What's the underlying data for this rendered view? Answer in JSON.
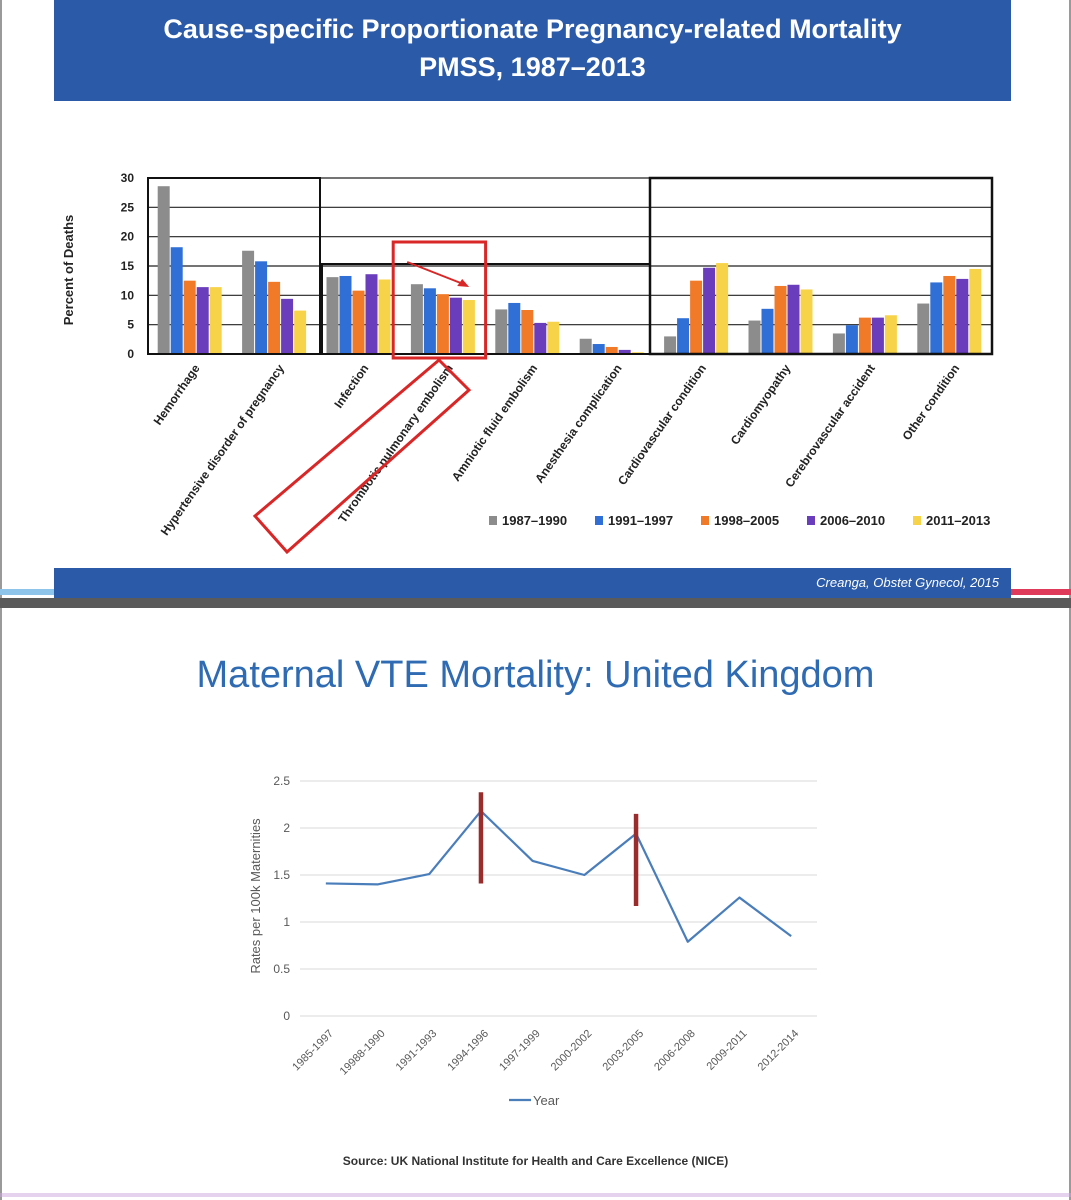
{
  "slide1": {
    "title_line1": "Cause-specific Proportionate Pregnancy-related Mortality",
    "title_line2": "PMSS, 1987–2013",
    "citation": "Creanga, Obstet Gynecol, 2015"
  },
  "slide2": {
    "title": "Maternal VTE Mortality: United Kingdom",
    "source": "Source: UK National Institute for Health and Care Excellence (NICE)"
  },
  "chart_data": [
    {
      "type": "bar",
      "title": "Cause-specific Proportionate Pregnancy-related Mortality PMSS, 1987–2013",
      "ylabel": "Percent of Deaths",
      "xlabel": "",
      "ylim": [
        0,
        30
      ],
      "yticks": [
        "0",
        "5",
        "10",
        "15",
        "20",
        "25",
        "30"
      ],
      "legend_position": "bottom-right",
      "categories": [
        "Hemorrhage",
        "Hypertensive disorder of pregnancy",
        "Infection",
        "Thrombotic pulmonary embolism",
        "Amniotic fluid embolism",
        "Anesthesia complication",
        "Cardiovascular condition",
        "Cardiomyopathy",
        "Cerebrovascular accident",
        "Other condition"
      ],
      "highlight_category": "Thrombotic pulmonary embolism",
      "series": [
        {
          "name": "1987–1990",
          "color": "#8c8c8c",
          "values": [
            28.6,
            17.6,
            13.1,
            11.9,
            7.6,
            2.6,
            3.0,
            5.7,
            3.5,
            8.6
          ]
        },
        {
          "name": "1991–1997",
          "color": "#2f6fd6",
          "values": [
            18.2,
            15.8,
            13.3,
            11.2,
            8.7,
            1.7,
            6.1,
            7.7,
            4.9,
            12.2
          ]
        },
        {
          "name": "1998–2005",
          "color": "#f07a28",
          "values": [
            12.5,
            12.3,
            10.8,
            10.2,
            7.5,
            1.2,
            12.5,
            11.6,
            6.2,
            13.3
          ]
        },
        {
          "name": "2006–2010",
          "color": "#6a3dbc",
          "values": [
            11.4,
            9.4,
            13.6,
            9.6,
            5.3,
            0.7,
            14.7,
            11.8,
            6.2,
            12.8
          ]
        },
        {
          "name": "2011–2013",
          "color": "#f7d34a",
          "values": [
            11.4,
            7.4,
            12.7,
            9.2,
            5.5,
            0.3,
            15.5,
            11.0,
            6.6,
            14.5
          ]
        }
      ]
    },
    {
      "type": "line",
      "title": "Maternal VTE Mortality: United Kingdom",
      "ylabel": "Rates per 100k Maternities",
      "xlabel": "",
      "ylim": [
        0,
        2.5
      ],
      "yticks": [
        "0",
        "0.5",
        "1",
        "1.5",
        "2",
        "2.5"
      ],
      "grid": true,
      "legend_position": "bottom",
      "categories": [
        "1985-1997",
        "19988-1990",
        "1991-1993",
        "1994-1996",
        "1997-1999",
        "2000-2002",
        "2003-2005",
        "2006-2008",
        "2009-2011",
        "2012-2014"
      ],
      "series": [
        {
          "name": "Year",
          "color": "#4a7ebb",
          "values": [
            1.41,
            1.4,
            1.51,
            2.18,
            1.65,
            1.5,
            1.94,
            0.79,
            1.26,
            0.85
          ]
        }
      ],
      "markers": [
        {
          "category": "1994-1996",
          "from": 1.41,
          "to": 2.38,
          "color": "#9b2c2c"
        },
        {
          "category": "2003-2005",
          "from": 1.17,
          "to": 2.15,
          "color": "#9b2c2c"
        }
      ]
    }
  ]
}
